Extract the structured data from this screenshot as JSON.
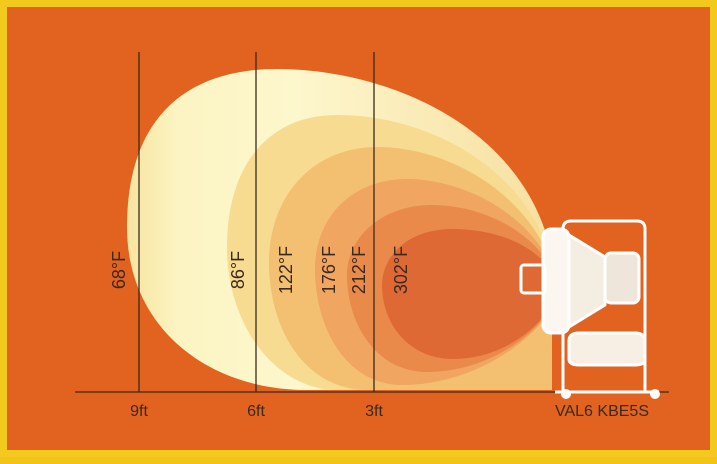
{
  "colors": {
    "frame": "#f4c91e",
    "background": "#e2621f",
    "zone_outer": "#fbf2ba",
    "zone_2": "#f7db90",
    "zone_3": "#f3c072",
    "zone_4": "#f0a560",
    "zone_5": "#ea8a4a",
    "zone_inner": "#de6935",
    "line": "#3a2a1c",
    "heater": "#ffffff"
  },
  "temperature_labels": [
    "68°F",
    "86°F",
    "122°F",
    "176°F",
    "212°F",
    "302°F"
  ],
  "distance_labels": [
    "9ft",
    "6ft",
    "3ft"
  ],
  "model_label": "VAL6 KBE5S"
}
